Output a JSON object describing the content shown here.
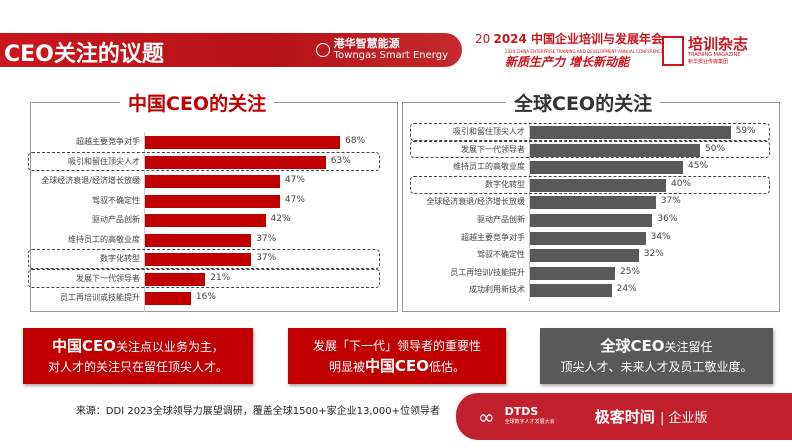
{
  "header": {
    "title": "CEO关注的议题",
    "sponsor_logo": "港华智慧能源",
    "sponsor_logo_en": "Towngas Smart Energy",
    "conference": {
      "badge": "20",
      "title": "2024 中国企业培训与发展年会",
      "subtitle": "2024 CHINA ENTERPRISE TRAINING AND DEVELOPMENT ANNUAL CONFERENCE",
      "slogan": "新质生产力  增长新动能"
    },
    "magazine": {
      "name": "培训杂志",
      "en": "TRAINING MAGAZINE",
      "sub": "新华报业传媒集团"
    }
  },
  "colors": {
    "china": "#c00000",
    "global": "#595959",
    "accent": "#c8161d"
  },
  "chart_data": [
    {
      "type": "bar",
      "title": "中国CEO的关注",
      "orientation": "horizontal",
      "unit": "%",
      "categories": [
        "超越主要竞争对手",
        "吸引和留住顶尖人才",
        "全球经济衰退/经济增长放缓",
        "驾驭不确定性",
        "驱动产品创新",
        "维持员工的高敬业度",
        "数字化转型",
        "发展下一代领导者",
        "员工再培训或技能提升"
      ],
      "values": [
        68,
        63,
        47,
        47,
        42,
        37,
        37,
        21,
        16
      ],
      "labels": [
        "68%",
        "63%",
        "47%",
        "47%",
        "42%",
        "37%",
        "37%",
        "21%",
        "16%"
      ],
      "highlighted": [
        "吸引和留住顶尖人才",
        "数字化转型",
        "发展下一代领导者"
      ]
    },
    {
      "type": "bar",
      "title": "全球CEO的关注",
      "orientation": "horizontal",
      "unit": "%",
      "categories": [
        "吸引和留住顶尖人才",
        "发展下一代领导者",
        "维持员工的高敬业度",
        "数字化转型",
        "全球经济衰退/经济增长放缓",
        "驱动产品创新",
        "超越主要竞争对手",
        "驾驭不确定性",
        "员工再培训/技能提升",
        "成功利用新技术"
      ],
      "values": [
        59,
        50,
        45,
        40,
        37,
        36,
        34,
        32,
        25,
        24
      ],
      "labels": [
        "59%",
        "50%",
        "45%",
        "40%",
        "37%",
        "36%",
        "34%",
        "32%",
        "25%",
        "24%"
      ],
      "highlighted": [
        "吸引和留住顶尖人才",
        "发展下一代领导者",
        "数字化转型"
      ]
    }
  ],
  "notes": [
    {
      "line1_bold": "中国CEO",
      "line1": "关注点以业务为主，",
      "line2": "对人才的关注只在留任顶尖人才。"
    },
    {
      "line1": "发展「下一代」领导者的重要性",
      "line2_pre": "明显被",
      "line2_bold": "中国CEO",
      "line2_post": "低估。"
    },
    {
      "line1_bold": "全球CEO",
      "line1": "关注留任",
      "line2": "顶尖人才、未来人才及员工敬业度。"
    }
  ],
  "source": "来源：DDI 2023全球领导力展望调研，覆盖全球1500+家企业13,000+位领导者",
  "footer": {
    "dtds": "DTDS",
    "dtds_sub": "全球数字人才发展大会",
    "brand": "极客时间",
    "edition": "企业版"
  }
}
